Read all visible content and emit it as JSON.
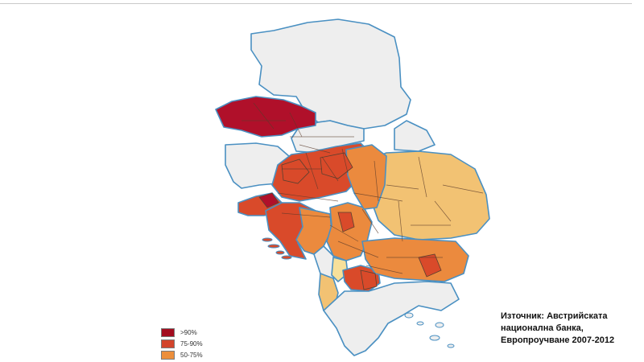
{
  "colors": {
    "gt90": "#b0102a",
    "r75_90": "#d94a2a",
    "r50_75": "#eb8a3e",
    "r25_50": "#f2c273",
    "low": "#f7e09a",
    "nodata": "#eeeeee",
    "outline": "#4a90c2",
    "inner": "#5a4030"
  },
  "legend": {
    "items": [
      {
        "label": ">90%",
        "color": "#a30d1f"
      },
      {
        "label": "75-90%",
        "color": "#d2442b"
      },
      {
        "label": "50-75%",
        "color": "#ec8f3c"
      },
      {
        "label": "",
        "color": "#f4c070"
      }
    ]
  },
  "source": {
    "line1": "Източник: Австрийската",
    "line2": "национална банка,",
    "line3": "Европроучване 2007-2012"
  }
}
